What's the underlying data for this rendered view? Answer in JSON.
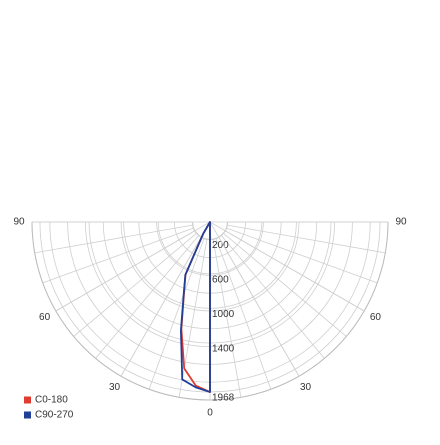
{
  "chart_data": {
    "type": "polar",
    "angles": [
      0,
      5,
      10,
      15,
      20,
      25,
      30,
      35
    ],
    "series": [
      {
        "name": "C0-180",
        "color": "#e03c31",
        "values": [
          1968,
          1900,
          1720,
          1280,
          880,
          670,
          160,
          0
        ]
      },
      {
        "name": "C90-270",
        "color": "#1f3f99",
        "values": [
          1968,
          1920,
          1850,
          1300,
          890,
          675,
          160,
          0
        ]
      }
    ],
    "rlim": [
      0,
      2060
    ],
    "rticks": [
      200,
      600,
      1000,
      1400,
      1968
    ],
    "angle_ticks": [
      0,
      30,
      60,
      90
    ],
    "grid": true,
    "legend": "bottom-left"
  }
}
